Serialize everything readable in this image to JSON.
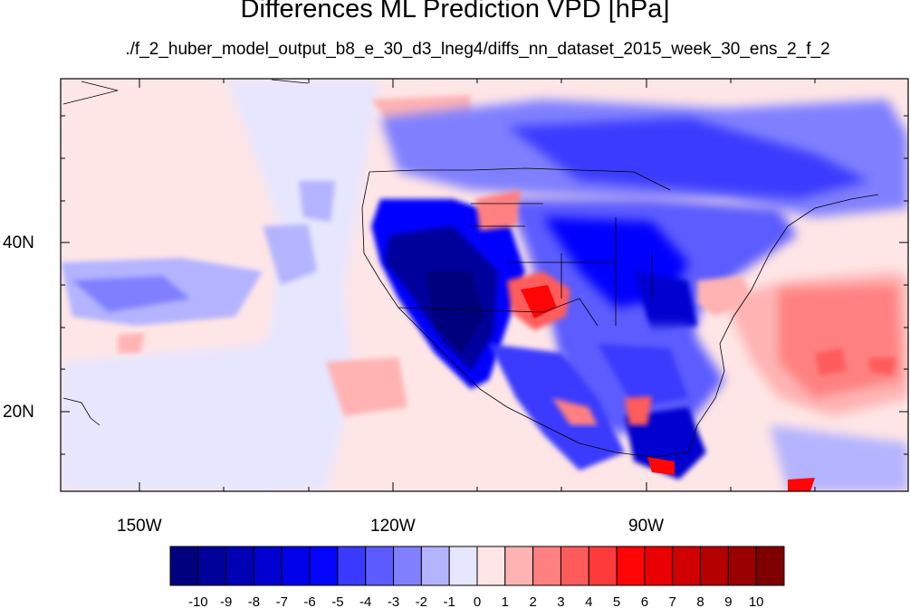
{
  "title": "Differences ML Prediction VPD [hPa]",
  "subtitle": "./f_2_huber_model_output_b8_e_30_d3_lneg4/diffs_nn_dataset_2015_week_30_ens_2_f_2",
  "lon_labels": [
    "150W",
    "120W",
    "90W"
  ],
  "lat_labels": [
    "40N",
    "20N"
  ],
  "colorbar": {
    "labels": [
      "-10",
      "-9",
      "-8",
      "-7",
      "-6",
      "-5",
      "-4",
      "-3",
      "-2",
      "-1",
      "0",
      "1",
      "2",
      "3",
      "4",
      "5",
      "6",
      "7",
      "8",
      "9",
      "10"
    ],
    "colors": [
      "#00007f",
      "#00009a",
      "#0000b5",
      "#0000d0",
      "#0000ea",
      "#0505ff",
      "#3a3aff",
      "#5b5bff",
      "#8080ff",
      "#b3b3ff",
      "#e6e6ff",
      "#ffe6e6",
      "#ffb3b3",
      "#ff8080",
      "#ff5b5b",
      "#ff3a3a",
      "#ff0505",
      "#ea0000",
      "#d00000",
      "#b50000",
      "#9a0000",
      "#7f0000"
    ]
  },
  "colors": {
    "background": "#ffffff",
    "border": "#000000"
  }
}
